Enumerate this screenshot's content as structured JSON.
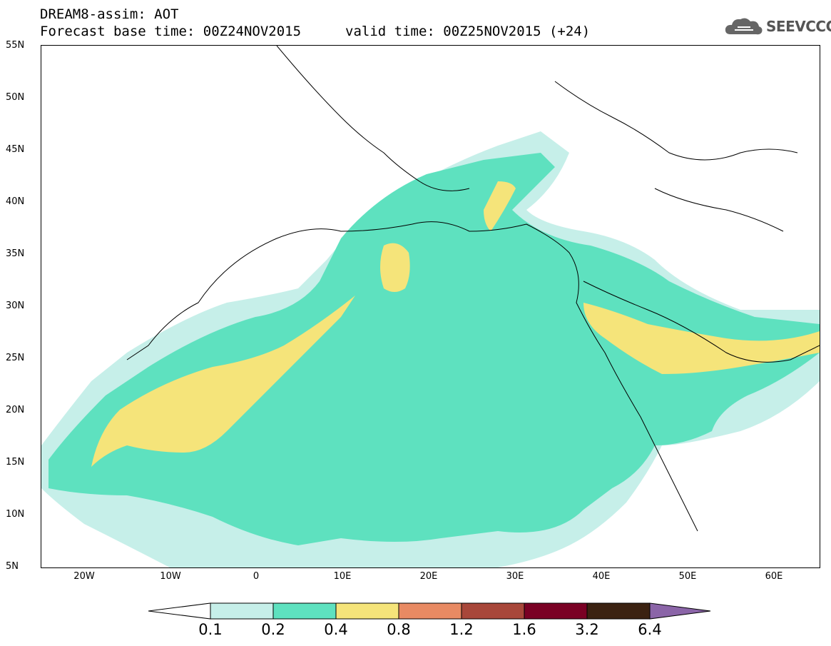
{
  "title": {
    "line1": "DREAM8-assim: AOT",
    "line2": "Forecast base time: 00Z24NOV2015",
    "valid": "valid time: 00Z25NOV2015 (+24)"
  },
  "logo": {
    "text": "SEEVCCC",
    "icon": "cloud-icon"
  },
  "map": {
    "lat_labels": [
      "55N",
      "50N",
      "45N",
      "40N",
      "35N",
      "30N",
      "25N",
      "20N",
      "15N",
      "10N",
      "5N"
    ],
    "lon_labels": [
      "20W",
      "10W",
      "0",
      "10E",
      "20E",
      "30E",
      "40E",
      "50E",
      "60E"
    ]
  },
  "colorbar": {
    "levels": [
      "0.1",
      "0.2",
      "0.4",
      "0.8",
      "1.2",
      "1.6",
      "3.2",
      "6.4"
    ],
    "colors": [
      "#c6efe9",
      "#5ee1bf",
      "#f5e47a",
      "#e88a63",
      "#a8473a",
      "#7a0024",
      "#3b2211",
      "#8b65a8"
    ]
  }
}
